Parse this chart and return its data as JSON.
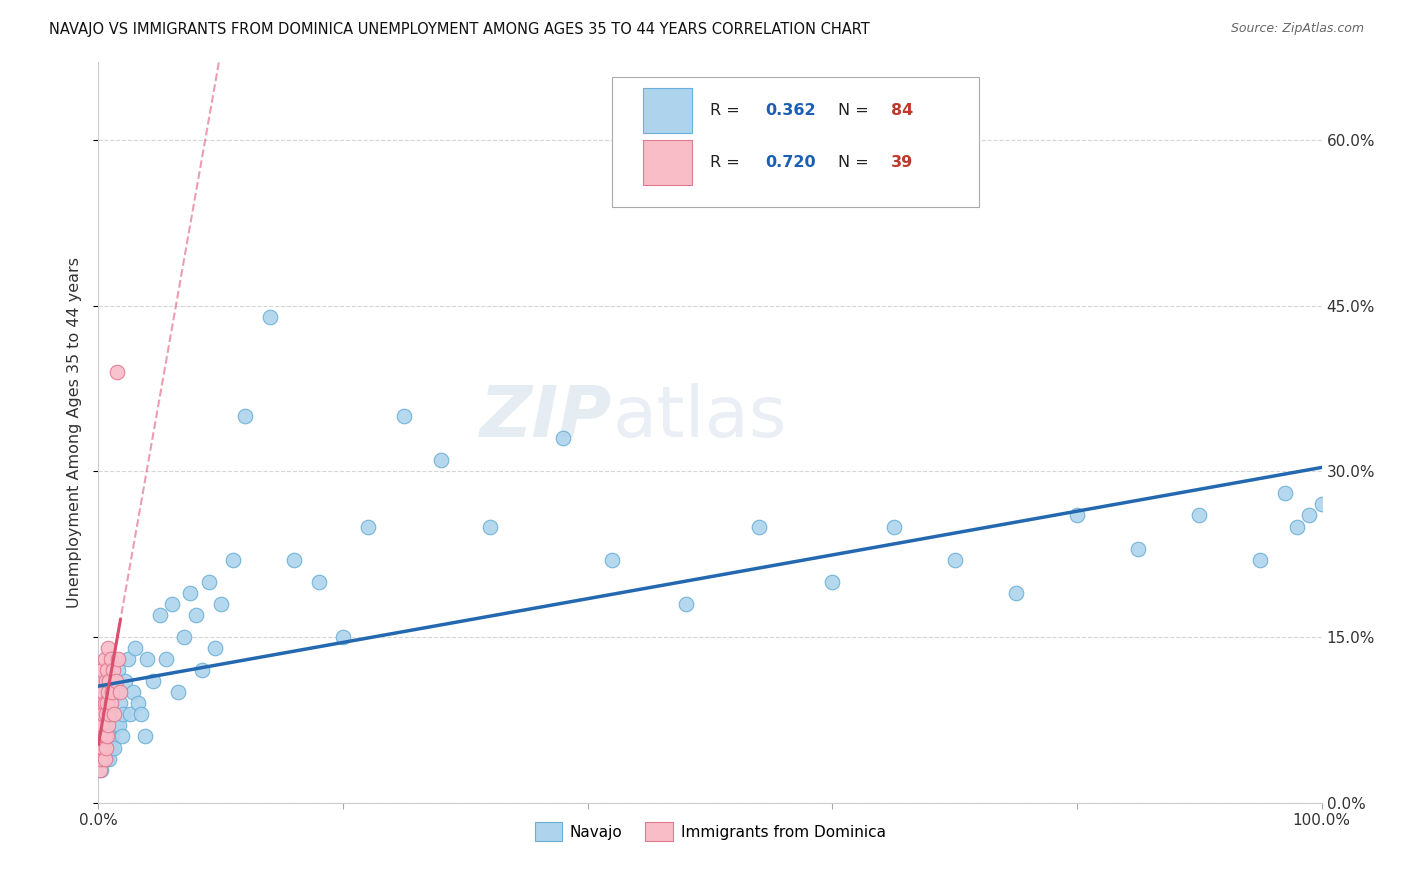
{
  "title": "NAVAJO VS IMMIGRANTS FROM DOMINICA UNEMPLOYMENT AMONG AGES 35 TO 44 YEARS CORRELATION CHART",
  "source": "Source: ZipAtlas.com",
  "ylabel": "Unemployment Among Ages 35 to 44 years",
  "xlim": [
    0,
    1.0
  ],
  "ylim": [
    0,
    0.67
  ],
  "yticks": [
    0.0,
    0.15,
    0.3,
    0.45,
    0.6
  ],
  "ytick_labels": [
    "0.0%",
    "15.0%",
    "30.0%",
    "45.0%",
    "60.0%"
  ],
  "navajo_R": 0.362,
  "navajo_N": 84,
  "dominica_R": 0.72,
  "dominica_N": 39,
  "navajo_color": "#aed4ed",
  "navajo_edge": "#6aafd6",
  "dominica_color": "#f9bdc8",
  "dominica_edge": "#e07890",
  "trend_blue": "#2469b0",
  "trend_pink": "#d94f6e",
  "legend_r_color": "#1a5fb4",
  "legend_n_color": "#c0392b",
  "navajo_x": [
    0.001,
    0.001,
    0.001,
    0.002,
    0.002,
    0.002,
    0.002,
    0.003,
    0.003,
    0.003,
    0.004,
    0.004,
    0.004,
    0.005,
    0.005,
    0.005,
    0.006,
    0.006,
    0.007,
    0.007,
    0.007,
    0.008,
    0.008,
    0.009,
    0.009,
    0.01,
    0.01,
    0.011,
    0.012,
    0.013,
    0.014,
    0.015,
    0.016,
    0.017,
    0.018,
    0.019,
    0.02,
    0.022,
    0.024,
    0.026,
    0.028,
    0.03,
    0.032,
    0.035,
    0.038,
    0.04,
    0.045,
    0.05,
    0.055,
    0.06,
    0.065,
    0.07,
    0.075,
    0.08,
    0.085,
    0.09,
    0.095,
    0.1,
    0.11,
    0.12,
    0.14,
    0.16,
    0.18,
    0.2,
    0.22,
    0.25,
    0.28,
    0.32,
    0.38,
    0.42,
    0.48,
    0.54,
    0.6,
    0.65,
    0.7,
    0.75,
    0.8,
    0.85,
    0.9,
    0.95,
    0.97,
    0.98,
    0.99,
    1.0
  ],
  "navajo_y": [
    0.04,
    0.06,
    0.08,
    0.03,
    0.05,
    0.07,
    0.1,
    0.04,
    0.07,
    0.09,
    0.05,
    0.08,
    0.11,
    0.04,
    0.06,
    0.09,
    0.05,
    0.08,
    0.04,
    0.06,
    0.09,
    0.05,
    0.08,
    0.04,
    0.07,
    0.05,
    0.09,
    0.06,
    0.08,
    0.05,
    0.07,
    0.1,
    0.12,
    0.07,
    0.09,
    0.06,
    0.08,
    0.11,
    0.13,
    0.08,
    0.1,
    0.14,
    0.09,
    0.08,
    0.06,
    0.13,
    0.11,
    0.17,
    0.13,
    0.18,
    0.1,
    0.15,
    0.19,
    0.17,
    0.12,
    0.2,
    0.14,
    0.18,
    0.22,
    0.35,
    0.44,
    0.22,
    0.2,
    0.15,
    0.25,
    0.35,
    0.31,
    0.25,
    0.33,
    0.22,
    0.18,
    0.25,
    0.2,
    0.25,
    0.22,
    0.19,
    0.26,
    0.23,
    0.26,
    0.22,
    0.28,
    0.25,
    0.26,
    0.27
  ],
  "dominica_x": [
    0.001,
    0.001,
    0.001,
    0.001,
    0.002,
    0.002,
    0.002,
    0.002,
    0.003,
    0.003,
    0.003,
    0.003,
    0.004,
    0.004,
    0.004,
    0.005,
    0.005,
    0.005,
    0.005,
    0.006,
    0.006,
    0.006,
    0.007,
    0.007,
    0.007,
    0.008,
    0.008,
    0.008,
    0.009,
    0.009,
    0.01,
    0.01,
    0.011,
    0.012,
    0.013,
    0.014,
    0.015,
    0.016,
    0.018
  ],
  "dominica_y": [
    0.03,
    0.05,
    0.07,
    0.09,
    0.04,
    0.06,
    0.08,
    0.11,
    0.05,
    0.07,
    0.09,
    0.12,
    0.05,
    0.08,
    0.1,
    0.04,
    0.06,
    0.09,
    0.13,
    0.05,
    0.08,
    0.11,
    0.06,
    0.09,
    0.12,
    0.07,
    0.1,
    0.14,
    0.08,
    0.11,
    0.09,
    0.13,
    0.1,
    0.12,
    0.08,
    0.11,
    0.39,
    0.13,
    0.1
  ],
  "watermark_zip": "ZIP",
  "watermark_atlas": "atlas",
  "legend_navajo": "Navajo",
  "legend_dominica": "Immigrants from Dominica",
  "grid_color": "#cccccc",
  "background_color": "#ffffff"
}
